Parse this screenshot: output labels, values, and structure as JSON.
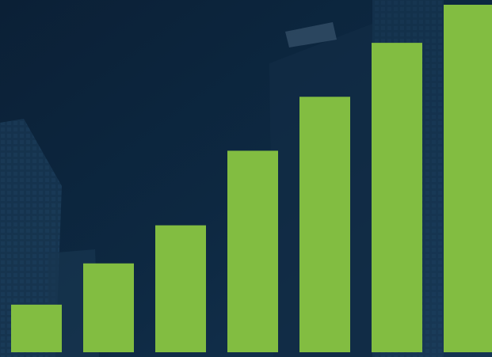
{
  "chart_data": {
    "type": "bar",
    "categories": [
      null,
      null,
      null,
      null,
      null,
      null,
      null
    ],
    "values": [
      60,
      112,
      160,
      254,
      322,
      390,
      438
    ],
    "color": "#82bd41"
  }
}
